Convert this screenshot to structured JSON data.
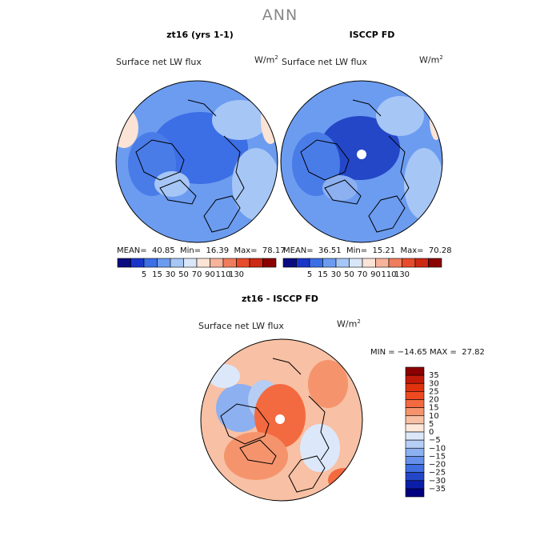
{
  "main_title": "ANN",
  "panels": [
    {
      "title": "zt16 (yrs 1-1)",
      "field_label": "Surface net LW flux",
      "units": "W/m",
      "units_sup": "2",
      "stats": {
        "mean_label": "MEAN=",
        "mean": "40.85",
        "min_label": "Min=",
        "min": "16.39",
        "max_label": "Max=",
        "max": "78.17"
      }
    },
    {
      "title": "ISCCP FD",
      "field_label": "Surface net LW flux",
      "units": "W/m",
      "units_sup": "2",
      "stats": {
        "mean_label": "MEAN=",
        "mean": "36.51",
        "min_label": "Min=",
        "min": "15.21",
        "max_label": "Max=",
        "max": "70.28"
      }
    },
    {
      "title": "zt16 - ISCCP FD",
      "field_label": "Surface net LW flux",
      "units": "W/m",
      "units_sup": "2",
      "stats_line": "MIN = −14.65 MAX =  27.82"
    }
  ],
  "chart_data": [
    {
      "type": "heatmap",
      "title": "zt16 (yrs 1-1)",
      "projection": "north polar stereographic",
      "colorbar": {
        "orientation": "horizontal",
        "levels": [
          5,
          15,
          30,
          50,
          70,
          90,
          110,
          130
        ],
        "colors": [
          "#0b0b80",
          "#1a36c8",
          "#3c6ee6",
          "#6c9cf0",
          "#a6c6f6",
          "#d8e6f8",
          "#fbe3d6",
          "#f7b49a",
          "#f07c5e",
          "#e84a2c",
          "#cc2a14",
          "#8b0000"
        ]
      },
      "stats": {
        "mean": 40.85,
        "min": 16.39,
        "max": 78.17
      }
    },
    {
      "type": "heatmap",
      "title": "ISCCP FD",
      "projection": "north polar stereographic",
      "colorbar": {
        "orientation": "horizontal",
        "levels": [
          5,
          15,
          30,
          50,
          70,
          90,
          110,
          130
        ],
        "colors": [
          "#0b0b80",
          "#1a36c8",
          "#3c6ee6",
          "#6c9cf0",
          "#a6c6f6",
          "#d8e6f8",
          "#fbe3d6",
          "#f7b49a",
          "#f07c5e",
          "#e84a2c",
          "#cc2a14",
          "#8b0000"
        ]
      },
      "stats": {
        "mean": 36.51,
        "min": 15.21,
        "max": 70.28
      }
    },
    {
      "type": "heatmap",
      "title": "zt16 - ISCCP FD",
      "projection": "north polar stereographic",
      "colorbar": {
        "orientation": "vertical",
        "levels": [
          35,
          30,
          25,
          20,
          15,
          10,
          5,
          0,
          -5,
          -10,
          -15,
          -20,
          -25,
          -30,
          -35
        ],
        "level_labels": [
          "35",
          "30",
          "25",
          "20",
          "15",
          "10",
          "5",
          "0",
          "−5",
          "−10",
          "−15",
          "−20",
          "−25",
          "−30",
          "−35"
        ],
        "colors": [
          "#8b0000",
          "#c21a0a",
          "#e0320f",
          "#ee4a22",
          "#f36a40",
          "#f5946c",
          "#f8c0a4",
          "#fde8da",
          "#dce8fa",
          "#b6cdf4",
          "#8cb0f0",
          "#6690ea",
          "#3f6ee0",
          "#2447c8",
          "#0a1ea8",
          "#000080"
        ]
      },
      "stats": {
        "min": -14.65,
        "max": 27.82
      }
    }
  ]
}
